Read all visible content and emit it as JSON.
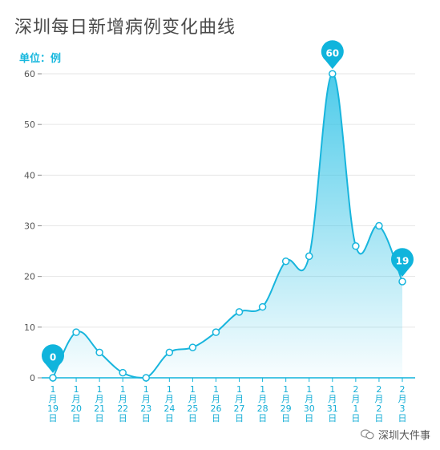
{
  "title": "深圳每日新增病例变化曲线",
  "unit_label": "单位：例",
  "watermark": "深圳大件事",
  "colors": {
    "line": "#18b5dd",
    "accent": "#10b4dc",
    "axis_text": "#15aed6",
    "grid": "#e6e6e6"
  },
  "chart_data": {
    "type": "area",
    "title": "深圳每日新增病例变化曲线",
    "ylabel": "单位：例",
    "ylim": [
      0,
      60
    ],
    "yticks": [
      0,
      10,
      20,
      30,
      40,
      50,
      60
    ],
    "grid": true,
    "categories": [
      [
        "1",
        "月",
        "19",
        "日"
      ],
      [
        "1",
        "月",
        "20",
        "日"
      ],
      [
        "1",
        "月",
        "21",
        "日"
      ],
      [
        "1",
        "月",
        "22",
        "日"
      ],
      [
        "1",
        "月",
        "23",
        "日"
      ],
      [
        "1",
        "月",
        "24",
        "日"
      ],
      [
        "1",
        "月",
        "25",
        "日"
      ],
      [
        "1",
        "月",
        "26",
        "日"
      ],
      [
        "1",
        "月",
        "27",
        "日"
      ],
      [
        "1",
        "月",
        "28",
        "日"
      ],
      [
        "1",
        "月",
        "29",
        "日"
      ],
      [
        "1",
        "月",
        "30",
        "日"
      ],
      [
        "1",
        "月",
        "31",
        "日"
      ],
      [
        "2",
        "月",
        "1",
        "日"
      ],
      [
        "2",
        "月",
        "2",
        "日"
      ],
      [
        "2",
        "月",
        "3",
        "日"
      ]
    ],
    "values": [
      0,
      9,
      5,
      1,
      0,
      5,
      6,
      9,
      13,
      14,
      23,
      24,
      60,
      26,
      30,
      19
    ],
    "pin_labels": [
      {
        "index": 0,
        "text": "0"
      },
      {
        "index": 12,
        "text": "60"
      },
      {
        "index": 15,
        "text": "19"
      }
    ]
  }
}
